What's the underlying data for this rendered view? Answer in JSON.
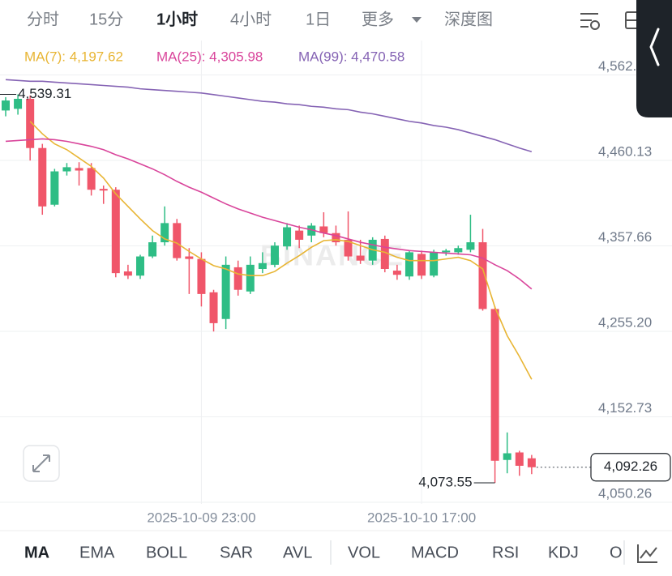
{
  "tabs": {
    "items": [
      "分时",
      "15分",
      "1小时",
      "4小时",
      "1日",
      "更多",
      "深度图"
    ],
    "active": 2
  },
  "chart_data": {
    "type": "candlestick",
    "categories": [
      null,
      null,
      null,
      null,
      null,
      null,
      null,
      null,
      null,
      null,
      null,
      null,
      null,
      null,
      null,
      null,
      "2025-10-09 23:00",
      null,
      null,
      null,
      null,
      null,
      null,
      null,
      null,
      null,
      null,
      null,
      null,
      null,
      null,
      null,
      null,
      null,
      "2025-10-10 17:00",
      null,
      null,
      null,
      null,
      null,
      null,
      null,
      null,
      null
    ],
    "open": [
      4520,
      4522,
      4534,
      4475,
      4407,
      4447,
      4451,
      4451,
      4426,
      4425,
      4327,
      4322,
      4345,
      4362,
      4385,
      4345,
      4342,
      4302,
      4270,
      4332,
      4303,
      4330,
      4335,
      4357,
      4376,
      4370,
      4381,
      4373,
      4365,
      4346,
      4340,
      4366,
      4328,
      4321,
      4348,
      4322,
      4350,
      4350,
      4353,
      4362,
      4282,
      4101,
      4110,
      4103
    ],
    "high": [
      4536,
      4539.31,
      4538,
      4480,
      4450,
      4457,
      4458,
      4457,
      4430,
      4428,
      4335,
      4347,
      4370,
      4405,
      4390,
      4355,
      4350,
      4305,
      4345,
      4340,
      4345,
      4350,
      4362,
      4385,
      4382,
      4385,
      4398,
      4382,
      4399,
      4365,
      4368,
      4370,
      4335,
      4352,
      4352,
      4353,
      4354,
      4358,
      4395,
      4378,
      4285,
      4134,
      4112,
      4107
    ],
    "low": [
      4513,
      4515,
      4460,
      4395,
      4405,
      4442,
      4430,
      4418,
      4408,
      4320,
      4318,
      4318,
      4343,
      4358,
      4340,
      4300,
      4285,
      4255,
      4258,
      4298,
      4300,
      4325,
      4332,
      4353,
      4355,
      4362,
      4368,
      4358,
      4340,
      4336,
      4335,
      4326,
      4317,
      4317,
      4318,
      4320,
      4346,
      4347,
      4350,
      4280,
      4073.55,
      4085,
      4082,
      4084
    ],
    "close": [
      4532,
      4534,
      4475,
      4405,
      4447,
      4452,
      4448,
      4425,
      4424,
      4325,
      4322,
      4345,
      4362,
      4385,
      4343,
      4342,
      4300,
      4265,
      4335,
      4305,
      4335,
      4337,
      4358,
      4380,
      4365,
      4382,
      4373,
      4362,
      4345,
      4340,
      4365,
      4330,
      4323,
      4350,
      4322,
      4350,
      4352,
      4355,
      4362,
      4282,
      4100,
      4109,
      4094,
      4092.26
    ],
    "up_color": "#2ebd85",
    "down_color": "#f0566a",
    "series": [
      {
        "name": "MA(7): 4,197.62",
        "color": "#e8b534",
        "values": [
          null,
          null,
          4507,
          4492,
          4480,
          4473,
          4463,
          4453,
          4439,
          4420,
          4405,
          4390,
          4376,
          4366,
          4361,
          4351,
          4342,
          4334,
          4330,
          4324,
          4322,
          4322,
          4327,
          4337,
          4346,
          4356,
          4364,
          4365,
          4363,
          4358,
          4353,
          4350,
          4344,
          4340,
          4340,
          4340,
          4342,
          4344,
          4340,
          4330,
          4284,
          4250,
          4225,
          4197.62
        ]
      },
      {
        "name": "MA(25): 4,305.98",
        "color": "#d9459b",
        "values": [
          4483,
          4484,
          4485,
          4486,
          4485,
          4483,
          4480,
          4477,
          4473,
          4467,
          4462,
          4456,
          4450,
          4443,
          4435,
          4428,
          4422,
          4415,
          4408,
          4402,
          4397,
          4392,
          4388,
          4384,
          4380,
          4377,
          4373,
          4370,
          4366,
          4362,
          4359,
          4356,
          4354,
          4352,
          4351,
          4350,
          4349,
          4348,
          4347,
          4343,
          4335,
          4328,
          4318,
          4305.98
        ]
      },
      {
        "name": "MA(99): 4,470.58",
        "color": "#8563b4",
        "values": [
          4557,
          4556,
          4555,
          4555,
          4554,
          4553,
          4552,
          4551,
          4550,
          4549,
          4548,
          4546,
          4545,
          4544,
          4543,
          4542,
          4541,
          4539,
          4537,
          4535,
          4533,
          4531,
          4530,
          4528,
          4527,
          4525,
          4524,
          4522,
          4521,
          4518,
          4516,
          4513,
          4510,
          4507,
          4505,
          4502,
          4500,
          4497,
          4493,
          4489,
          4485,
          4480,
          4475,
          4470.58
        ]
      }
    ],
    "ylim": [
      4048.3,
      4594.2
    ],
    "yticks": [
      {
        "value": 4050.26,
        "label": "4,050.26"
      },
      {
        "value": 4152.73,
        "label": "4,152.73"
      },
      {
        "value": 4255.2,
        "label": "4,255.20"
      },
      {
        "value": 4357.66,
        "label": "4,357.66"
      },
      {
        "value": 4460.13,
        "label": "4,460.13"
      },
      {
        "value": 4562.6,
        "label": "4,562.60"
      }
    ],
    "grid": true,
    "annotations": [
      {
        "value": 4539.31,
        "label": "4,539.31"
      },
      {
        "value": 4073.55,
        "label": "4,073.55"
      }
    ],
    "last_price": {
      "value": 4092.26,
      "label": "4,092.26"
    },
    "watermark": "BINANCE"
  },
  "indicators": {
    "items": [
      "MA",
      "EMA",
      "BOLL",
      "SAR",
      "AVL",
      "VOL",
      "MACD",
      "RSI",
      "KDJ",
      "O"
    ],
    "active": 0
  }
}
